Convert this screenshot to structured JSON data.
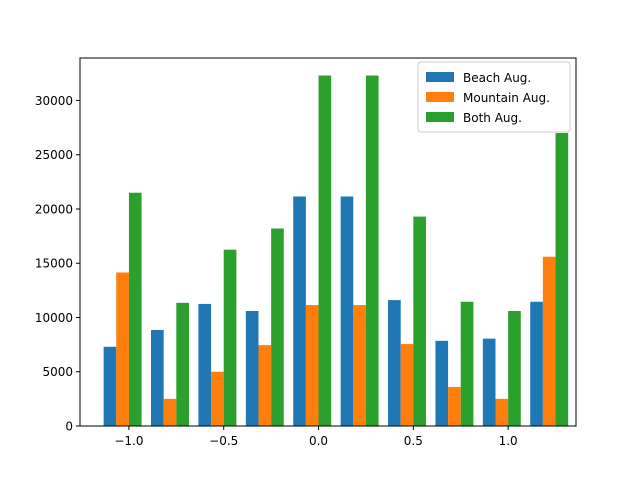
{
  "chart_data": {
    "type": "bar",
    "x": [
      -1.1,
      -0.85,
      -0.6,
      -0.35,
      -0.1,
      0.15,
      0.4,
      0.65,
      0.9,
      1.15
    ],
    "bar_width": 0.0667,
    "series": [
      {
        "name": "Beach Aug.",
        "color": "#1f77b4",
        "values": [
          7300,
          8850,
          11250,
          10600,
          21150,
          21150,
          11600,
          7850,
          8050,
          11450
        ]
      },
      {
        "name": "Mountain Aug.",
        "color": "#ff7f0e",
        "values": [
          14150,
          2500,
          5000,
          7450,
          11150,
          11150,
          7550,
          3600,
          2500,
          15600
        ]
      },
      {
        "name": "Both Aug.",
        "color": "#2ca02c",
        "values": [
          21500,
          11350,
          16250,
          18200,
          32300,
          32300,
          19300,
          11450,
          10600,
          27000
        ]
      }
    ],
    "xlim": [
      -1.258,
      1.358
    ],
    "ylim": [
      0,
      33915
    ],
    "xticks": [
      -1.0,
      -0.5,
      0.0,
      0.5,
      1.0
    ],
    "xtick_labels": [
      "−1.0",
      "−0.5",
      "0.0",
      "0.5",
      "1.0"
    ],
    "yticks": [
      0,
      5000,
      10000,
      15000,
      20000,
      25000,
      30000
    ],
    "ytick_labels": [
      "0",
      "5000",
      "10000",
      "15000",
      "20000",
      "25000",
      "30000"
    ],
    "grid": false,
    "legend_position": "top-right",
    "title": "",
    "xlabel": "",
    "ylabel": ""
  }
}
